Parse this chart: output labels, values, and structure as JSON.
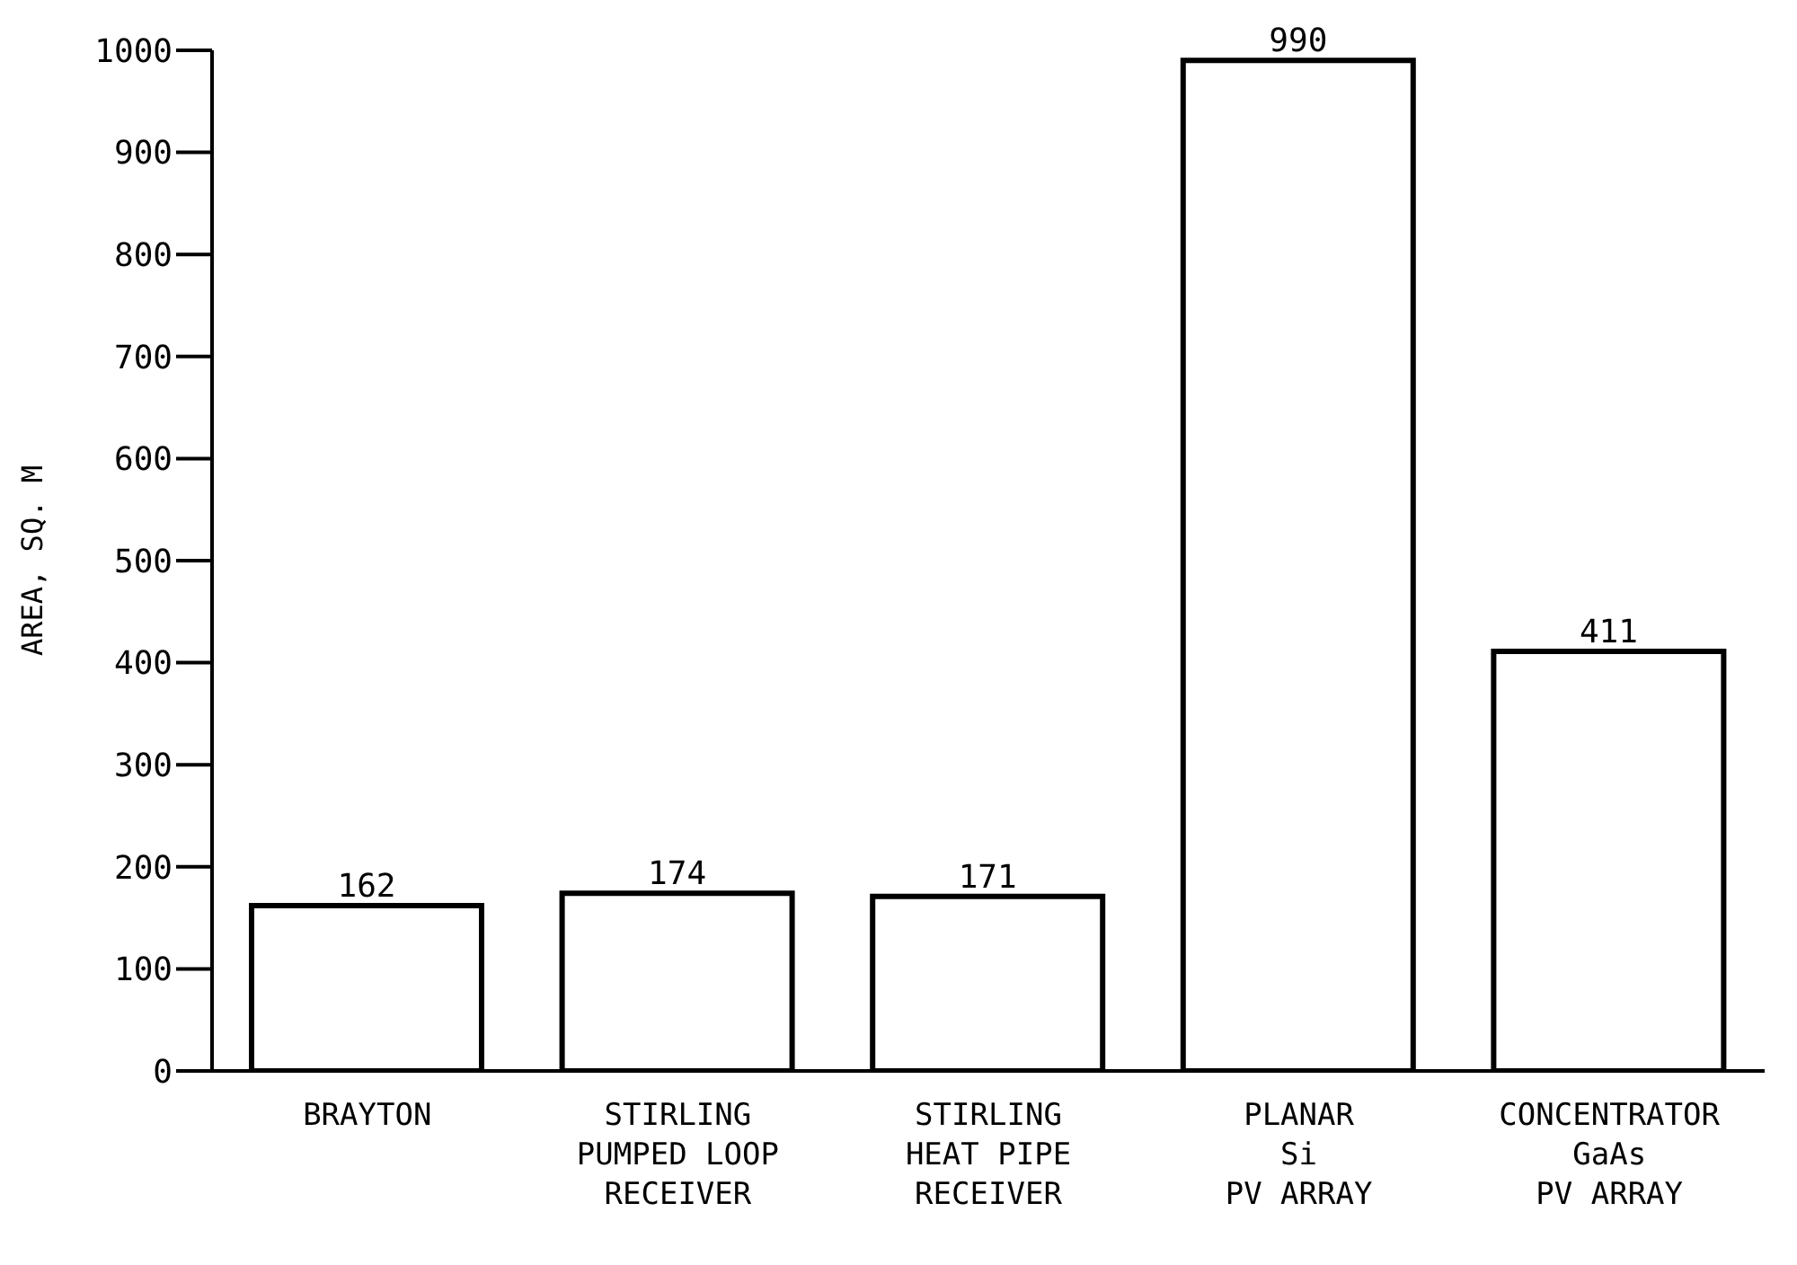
{
  "chart_data": {
    "type": "bar",
    "ylabel": "AREA, SQ. M",
    "categories": [
      "BRAYTON",
      "STIRLING\nPUMPED LOOP\nRECEIVER",
      "STIRLING\nHEAT PIPE\nRECEIVER",
      "PLANAR\nSi\nPV ARRAY",
      "CONCENTRATOR\nGaAs\nPV ARRAY"
    ],
    "values": [
      162,
      174,
      171,
      990,
      411
    ],
    "color": "#ffffff",
    "ylim": [
      0,
      1000
    ],
    "yticks": [
      0,
      100,
      200,
      300,
      400,
      500,
      600,
      700,
      800,
      900,
      1000
    ],
    "grid": false,
    "legend": false,
    "data_labels": true
  }
}
